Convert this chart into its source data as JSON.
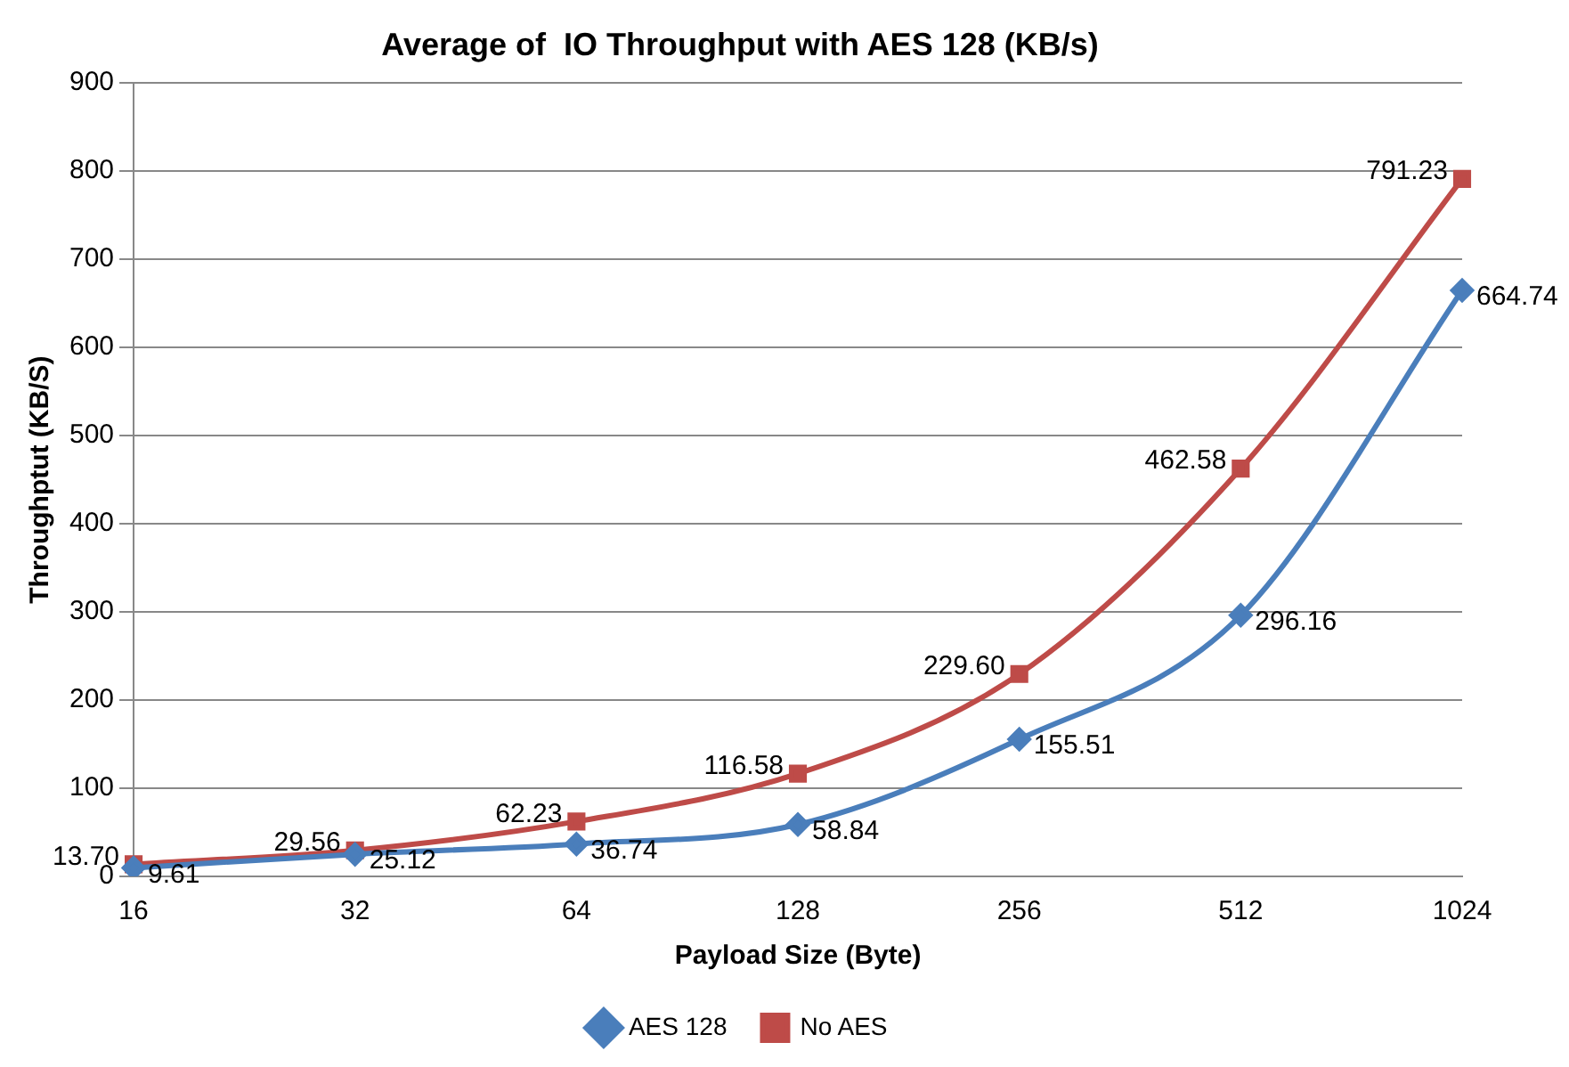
{
  "chart_data": {
    "type": "line",
    "title": "Average of  IO Throughput with AES 128 (KB/s)",
    "xlabel": "Payload Size (Byte)",
    "ylabel": "Throughptut (KB/S)",
    "categories": [
      "16",
      "32",
      "64",
      "128",
      "256",
      "512",
      "1024"
    ],
    "series": [
      {
        "name": "AES 128",
        "color": "#4a7ebb",
        "marker": "diamond",
        "values": [
          9.61,
          25.12,
          36.74,
          58.84,
          155.51,
          296.16,
          664.74
        ],
        "value_labels": [
          "9.61",
          "25.12",
          "36.74",
          "58.84",
          "155.51",
          "296.16",
          "664.74"
        ]
      },
      {
        "name": "No AES",
        "color": "#be4b48",
        "marker": "square",
        "values": [
          13.7,
          29.56,
          62.23,
          116.58,
          229.6,
          462.58,
          791.23
        ],
        "value_labels": [
          "13.70",
          "29.56",
          "62.23",
          "116.58",
          "229.60",
          "462.58",
          "791.23"
        ]
      }
    ],
    "ylim": [
      0,
      900
    ],
    "yticks": [
      0,
      100,
      200,
      300,
      400,
      500,
      600,
      700,
      800,
      900
    ],
    "grid": "y",
    "legend": "bottom",
    "line_style": "solid"
  }
}
